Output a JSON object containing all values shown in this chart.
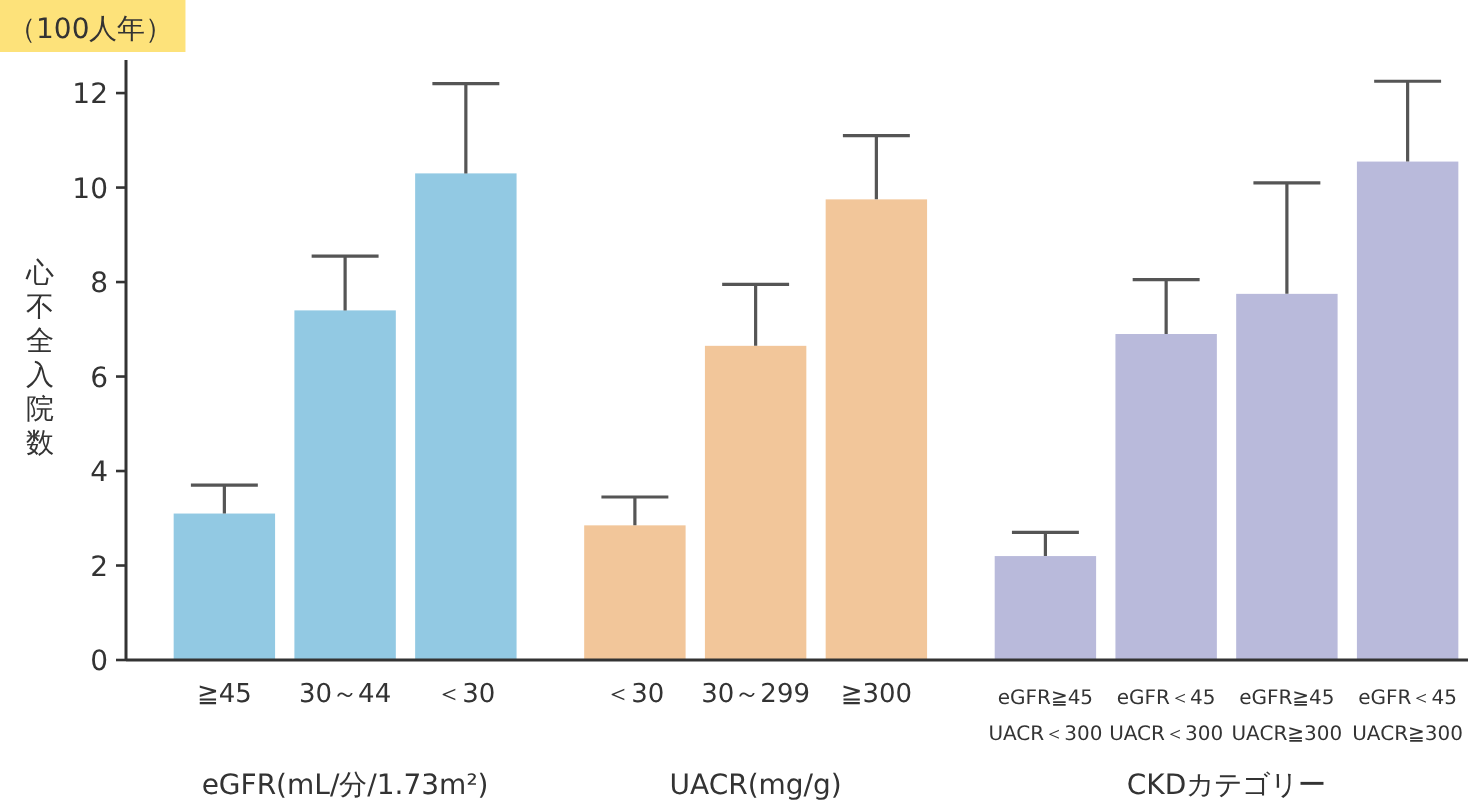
{
  "chart_data": {
    "type": "bar",
    "ylabel": "心不全入院数",
    "annotations": [
      "（100人年）",
      "eGFR(mL/分/1.73m²)",
      "UACR(mg/g)",
      "CKDカテゴリー"
    ],
    "categories": [
      "≧45",
      "30～44",
      "＜30",
      null,
      "＜30",
      "30～299",
      "≧300",
      null,
      "eGFR≧45\nUACR＜300",
      "eGFR＜45\nUACR＜300",
      "eGFR≧45\nUACR≧300",
      "eGFR＜45\nUACR≧300"
    ],
    "values": [
      3.1,
      7.4,
      10.3,
      null,
      2.85,
      6.65,
      9.75,
      null,
      2.2,
      6.9,
      7.75,
      10.55
    ],
    "errors": [
      [
        3.1,
        3.7
      ],
      [
        7.4,
        8.55
      ],
      [
        10.3,
        12.2
      ],
      null,
      [
        2.85,
        3.45
      ],
      [
        6.65,
        7.95
      ],
      [
        9.75,
        11.1
      ],
      null,
      [
        2.2,
        2.7
      ],
      [
        6.9,
        8.05
      ],
      [
        7.75,
        10.1
      ],
      [
        10.55,
        12.25
      ]
    ],
    "colors": [
      "#92c9e3",
      "#92c9e3",
      "#92c9e3",
      null,
      "#f2c69a",
      "#f2c69a",
      "#f2c69a",
      null,
      "#b9badb",
      "#b9badb",
      "#b9badb",
      "#b9badb"
    ],
    "ylim": [
      0,
      12.7
    ],
    "yticks": [
      0,
      2,
      4,
      6,
      8,
      10,
      12
    ]
  }
}
